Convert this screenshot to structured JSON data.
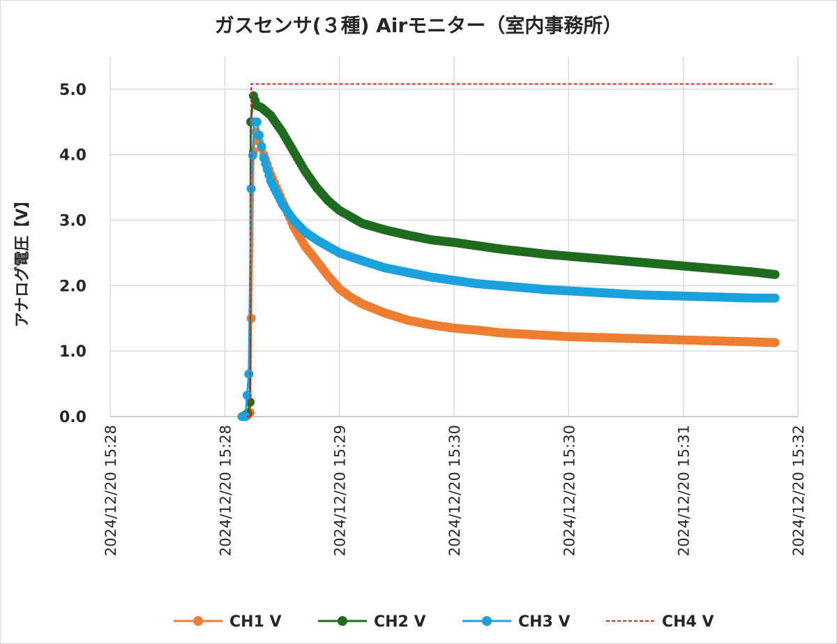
{
  "chart_data": {
    "type": "line",
    "title": "ガスセンサ(３種) Airモニター（室内事務所）",
    "ylabel": "アナログ電圧【V】",
    "xlabel": "",
    "ylim": [
      0,
      5.5
    ],
    "yticks": [
      {
        "value": 0,
        "label": "0.0"
      },
      {
        "value": 1,
        "label": "1.0"
      },
      {
        "value": 2,
        "label": "2.0"
      },
      {
        "value": 3,
        "label": "3.0"
      },
      {
        "value": 4,
        "label": "4.0"
      },
      {
        "value": 5,
        "label": "5.0"
      }
    ],
    "xlim": [
      0,
      3
    ],
    "xunit": "minutes",
    "xticks": [
      {
        "value": 0.0,
        "label": "2024/12/20 15:28"
      },
      {
        "value": 0.5,
        "label": "2024/12/20 15:28"
      },
      {
        "value": 1.0,
        "label": "2024/12/20 15:29"
      },
      {
        "value": 1.5,
        "label": "2024/12/20 15:30"
      },
      {
        "value": 2.0,
        "label": "2024/12/20 15:30"
      },
      {
        "value": 2.5,
        "label": "2024/12/20 15:31"
      },
      {
        "value": 3.0,
        "label": "2024/12/20 15:32"
      }
    ],
    "grid": true,
    "legend_position": "bottom",
    "series": [
      {
        "name": "CH1 V",
        "color": "#ed7d31",
        "style": "line-marker",
        "points": [
          [
            0.58,
            0.0
          ],
          [
            0.6,
            0.02
          ],
          [
            0.61,
            0.06
          ],
          [
            0.615,
            1.5
          ],
          [
            0.625,
            4.05
          ],
          [
            0.635,
            4.35
          ],
          [
            0.65,
            4.2
          ],
          [
            0.67,
            4.0
          ],
          [
            0.7,
            3.7
          ],
          [
            0.75,
            3.3
          ],
          [
            0.8,
            2.9
          ],
          [
            0.85,
            2.6
          ],
          [
            0.9,
            2.38
          ],
          [
            0.95,
            2.15
          ],
          [
            1.0,
            1.95
          ],
          [
            1.05,
            1.82
          ],
          [
            1.1,
            1.72
          ],
          [
            1.2,
            1.58
          ],
          [
            1.3,
            1.47
          ],
          [
            1.4,
            1.4
          ],
          [
            1.5,
            1.35
          ],
          [
            1.6,
            1.32
          ],
          [
            1.7,
            1.28
          ],
          [
            1.8,
            1.26
          ],
          [
            1.9,
            1.24
          ],
          [
            2.0,
            1.22
          ],
          [
            2.1,
            1.21
          ],
          [
            2.2,
            1.2
          ],
          [
            2.3,
            1.19
          ],
          [
            2.4,
            1.18
          ],
          [
            2.5,
            1.17
          ],
          [
            2.6,
            1.16
          ],
          [
            2.7,
            1.15
          ],
          [
            2.8,
            1.14
          ],
          [
            2.9,
            1.13
          ]
        ]
      },
      {
        "name": "CH2 V",
        "color": "#1f6b1f",
        "style": "line-marker",
        "points": [
          [
            0.58,
            0.0
          ],
          [
            0.6,
            0.05
          ],
          [
            0.61,
            0.22
          ],
          [
            0.613,
            4.5
          ],
          [
            0.625,
            4.9
          ],
          [
            0.64,
            4.75
          ],
          [
            0.66,
            4.72
          ],
          [
            0.7,
            4.6
          ],
          [
            0.75,
            4.35
          ],
          [
            0.8,
            4.05
          ],
          [
            0.85,
            3.75
          ],
          [
            0.9,
            3.5
          ],
          [
            0.95,
            3.3
          ],
          [
            1.0,
            3.15
          ],
          [
            1.05,
            3.05
          ],
          [
            1.1,
            2.95
          ],
          [
            1.2,
            2.85
          ],
          [
            1.3,
            2.77
          ],
          [
            1.4,
            2.7
          ],
          [
            1.5,
            2.66
          ],
          [
            1.6,
            2.61
          ],
          [
            1.7,
            2.56
          ],
          [
            1.8,
            2.52
          ],
          [
            1.9,
            2.48
          ],
          [
            2.0,
            2.45
          ],
          [
            2.1,
            2.42
          ],
          [
            2.2,
            2.39
          ],
          [
            2.3,
            2.36
          ],
          [
            2.4,
            2.33
          ],
          [
            2.5,
            2.3
          ],
          [
            2.6,
            2.27
          ],
          [
            2.7,
            2.24
          ],
          [
            2.8,
            2.21
          ],
          [
            2.9,
            2.17
          ]
        ]
      },
      {
        "name": "CH3 V",
        "color": "#1ba1dc",
        "style": "line-marker",
        "points": [
          [
            0.575,
            0.0
          ],
          [
            0.59,
            0.0
          ],
          [
            0.605,
            0.65
          ],
          [
            0.615,
            3.48
          ],
          [
            0.628,
            4.5
          ],
          [
            0.64,
            4.5
          ],
          [
            0.65,
            4.3
          ],
          [
            0.67,
            3.95
          ],
          [
            0.7,
            3.6
          ],
          [
            0.75,
            3.25
          ],
          [
            0.8,
            3.0
          ],
          [
            0.85,
            2.82
          ],
          [
            0.9,
            2.7
          ],
          [
            0.95,
            2.6
          ],
          [
            1.0,
            2.5
          ],
          [
            1.05,
            2.44
          ],
          [
            1.1,
            2.38
          ],
          [
            1.2,
            2.27
          ],
          [
            1.3,
            2.2
          ],
          [
            1.4,
            2.13
          ],
          [
            1.5,
            2.08
          ],
          [
            1.6,
            2.03
          ],
          [
            1.7,
            2.0
          ],
          [
            1.8,
            1.97
          ],
          [
            1.9,
            1.94
          ],
          [
            2.0,
            1.92
          ],
          [
            2.1,
            1.9
          ],
          [
            2.2,
            1.88
          ],
          [
            2.3,
            1.86
          ],
          [
            2.4,
            1.85
          ],
          [
            2.5,
            1.84
          ],
          [
            2.6,
            1.83
          ],
          [
            2.7,
            1.82
          ],
          [
            2.8,
            1.81
          ],
          [
            2.9,
            1.81
          ]
        ]
      },
      {
        "name": "CH4 V",
        "color": "#e02020",
        "style": "dashed",
        "points": [
          [
            0.595,
            0.0
          ],
          [
            0.61,
            0.0
          ],
          [
            0.615,
            5.08
          ],
          [
            2.9,
            5.08
          ]
        ]
      }
    ]
  }
}
